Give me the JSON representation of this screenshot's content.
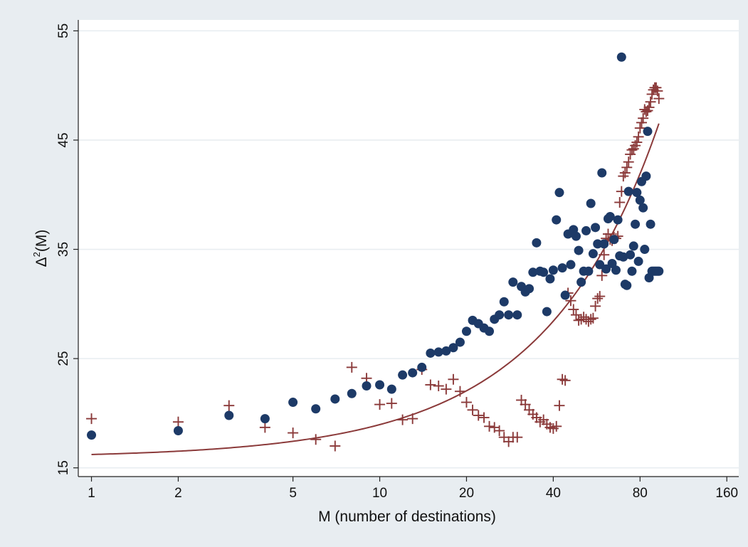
{
  "chart_data": {
    "type": "scatter",
    "title": "",
    "xlabel": "M (number of destinations)",
    "ylabel": {
      "base": "Δ",
      "sup": "2",
      "rest": "(M)"
    },
    "x_scale": "log",
    "xlim": [
      0.9,
      176
    ],
    "ylim": [
      14.2,
      56
    ],
    "x_ticks": [
      1,
      2,
      5,
      10,
      20,
      40,
      80,
      160
    ],
    "x_tick_labels": [
      "1",
      "2",
      "5",
      "10",
      "20",
      "40",
      "80",
      "160"
    ],
    "y_ticks": [
      15,
      25,
      35,
      45,
      55
    ],
    "y_tick_labels": [
      "15",
      "25",
      "35",
      "45",
      "55"
    ],
    "grid": "horizontal",
    "legend": "none",
    "colors": {
      "background": "#e8edf1",
      "plot_area": "#ffffff",
      "grid": "#e8edf1",
      "dots": "#1d3a67",
      "plus": "#8b3a3a",
      "fit": "#8b3a3a"
    },
    "series": [
      {
        "type": "scatter-dot",
        "x": [
          1,
          2,
          3,
          4,
          5,
          6,
          7,
          8,
          9,
          10,
          11,
          12,
          13,
          14,
          15,
          16,
          17,
          18,
          19,
          20,
          21,
          22,
          23,
          24,
          25,
          26,
          27,
          28,
          29,
          30,
          31,
          32,
          33,
          34,
          35,
          36,
          37,
          38,
          39,
          40,
          41,
          42,
          43,
          44,
          45,
          46,
          47,
          48,
          49,
          50,
          51,
          52,
          53,
          54,
          55,
          56,
          57,
          58,
          59,
          60,
          61,
          62,
          63,
          64,
          65,
          66,
          67,
          68,
          69,
          70,
          71,
          72,
          73,
          74,
          75,
          76,
          77,
          78,
          79,
          80,
          81,
          82,
          83,
          84,
          85,
          86,
          87,
          88,
          89,
          90,
          91,
          92,
          93
        ],
        "y": [
          18.0,
          18.4,
          19.8,
          19.5,
          21.0,
          20.4,
          21.3,
          21.8,
          22.5,
          22.6,
          22.2,
          23.5,
          23.7,
          24.2,
          25.5,
          25.6,
          25.7,
          26.0,
          26.5,
          27.5,
          28.5,
          28.2,
          27.8,
          27.5,
          28.6,
          29.0,
          30.2,
          29.0,
          32.0,
          29.0,
          31.6,
          31.1,
          31.4,
          32.9,
          35.6,
          33.0,
          32.9,
          29.3,
          32.3,
          33.1,
          37.7,
          40.2,
          33.3,
          30.8,
          36.4,
          33.6,
          36.8,
          36.2,
          34.9,
          32.0,
          33.0,
          36.7,
          33.0,
          39.2,
          34.6,
          37.0,
          35.5,
          33.6,
          42.0,
          35.5,
          33.2,
          37.8,
          38.0,
          33.7,
          35.9,
          33.1,
          37.7,
          34.4,
          52.6,
          34.3,
          31.8,
          31.7,
          40.3,
          34.5,
          33.0,
          35.3,
          37.3,
          40.2,
          33.9,
          39.5,
          41.2,
          38.8,
          35.0,
          41.7,
          45.8,
          32.4,
          37.3,
          33.0,
          33.0,
          33.0,
          33.0,
          33.0,
          33.0
        ]
      },
      {
        "type": "scatter-plus",
        "x": [
          1,
          2,
          3,
          4,
          5,
          6,
          7,
          8,
          9,
          10,
          11,
          12,
          13,
          14,
          15,
          16,
          17,
          18,
          19,
          20,
          21,
          22,
          23,
          24,
          25,
          26,
          27,
          28,
          29,
          30,
          31,
          32,
          33,
          34,
          35,
          36,
          37,
          38,
          39,
          40,
          41,
          42,
          43,
          44,
          45,
          46,
          47,
          48,
          49,
          50,
          51,
          52,
          53,
          54,
          55,
          56,
          57,
          58,
          59,
          60,
          61,
          62,
          63,
          64,
          65,
          66,
          67,
          68,
          69,
          70,
          71,
          72,
          73,
          74,
          75,
          76,
          77,
          78,
          79,
          80,
          81,
          82,
          83,
          84,
          85,
          86,
          87,
          88,
          89,
          90,
          91,
          92,
          93
        ],
        "y": [
          19.5,
          19.2,
          20.7,
          18.7,
          18.2,
          17.6,
          17.0,
          24.2,
          23.2,
          20.8,
          20.9,
          19.4,
          19.5,
          24.0,
          22.6,
          22.5,
          22.2,
          23.1,
          22.0,
          21.0,
          20.3,
          19.8,
          19.6,
          18.8,
          18.7,
          18.4,
          17.8,
          17.4,
          17.8,
          17.8,
          21.2,
          20.8,
          20.3,
          19.9,
          19.6,
          19.2,
          19.4,
          19.0,
          18.7,
          18.6,
          18.8,
          20.7,
          23.1,
          23.0,
          31.0,
          30.3,
          29.5,
          29.0,
          28.5,
          28.6,
          28.8,
          28.6,
          28.4,
          28.6,
          28.7,
          29.8,
          30.5,
          30.7,
          32.6,
          34.5,
          36.0,
          36.4,
          35.9,
          35.8,
          36.1,
          36.0,
          36.2,
          39.3,
          40.3,
          41.7,
          42.0,
          42.5,
          43.0,
          43.7,
          44.1,
          44.2,
          44.5,
          44.8,
          45.3,
          46.1,
          46.6,
          47.0,
          47.8,
          47.6,
          47.7,
          48.0,
          48.5,
          49.2,
          49.6,
          49.8,
          49.8,
          49.5,
          48.8
        ]
      },
      {
        "type": "fit-line",
        "model": "y = 15.922 + 0.3003*M + 0.000308*M^2",
        "x_range": [
          1,
          93
        ]
      }
    ]
  }
}
